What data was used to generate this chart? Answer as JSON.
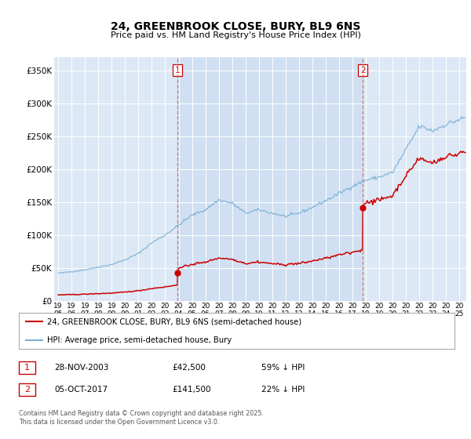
{
  "title": "24, GREENBROOK CLOSE, BURY, BL9 6NS",
  "subtitle": "Price paid vs. HM Land Registry's House Price Index (HPI)",
  "plot_bg_color": "#dce8f5",
  "shade_color": "#c8dcf0",
  "ylabel_ticks": [
    "£0",
    "£50K",
    "£100K",
    "£150K",
    "£200K",
    "£250K",
    "£300K",
    "£350K"
  ],
  "ytick_values": [
    0,
    50000,
    100000,
    150000,
    200000,
    250000,
    300000,
    350000
  ],
  "ylim": [
    0,
    370000
  ],
  "xlim_start": 1994.7,
  "xlim_end": 2025.5,
  "purchase1_date": 2003.91,
  "purchase1_price": 42500,
  "purchase2_date": 2017.76,
  "purchase2_price": 141500,
  "legend_line1": "24, GREENBROOK CLOSE, BURY, BL9 6NS (semi-detached house)",
  "legend_line2": "HPI: Average price, semi-detached house, Bury",
  "table_row1_num": "1",
  "table_row1_date": "28-NOV-2003",
  "table_row1_price": "£42,500",
  "table_row1_hpi": "59% ↓ HPI",
  "table_row2_num": "2",
  "table_row2_date": "05-OCT-2017",
  "table_row2_price": "£141,500",
  "table_row2_hpi": "22% ↓ HPI",
  "footer": "Contains HM Land Registry data © Crown copyright and database right 2025.\nThis data is licensed under the Open Government Licence v3.0.",
  "vline1_x": 2003.91,
  "vline2_x": 2017.76,
  "red_color": "#cc0000",
  "blue_color": "#7ab0d4",
  "vline_color": "#cc6666"
}
